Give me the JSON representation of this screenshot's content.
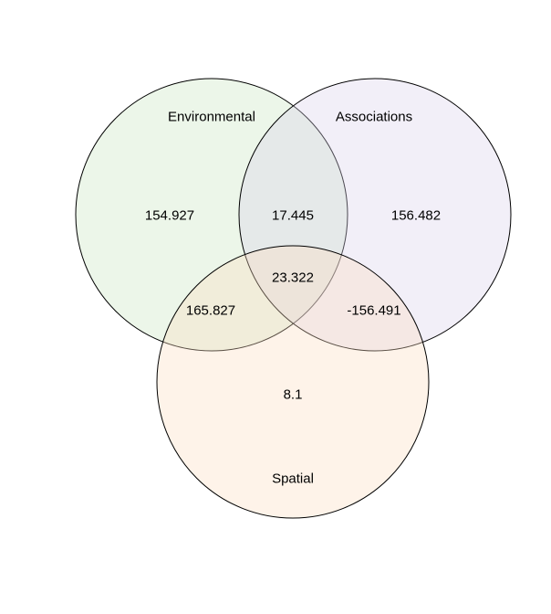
{
  "sets": [
    {
      "label": "Environmental",
      "color": "#c8e6c0"
    },
    {
      "label": "Associations",
      "color": "#d9d0ea"
    },
    {
      "label": "Spatial",
      "color": "#fbdcc0"
    }
  ],
  "regions": {
    "environmental_only": "154.927",
    "associations_only": "156.482",
    "spatial_only": "8.1",
    "environmental_associations": "17.445",
    "environmental_spatial": "165.827",
    "associations_spatial": "-156.491",
    "all_three": "23.322"
  }
}
